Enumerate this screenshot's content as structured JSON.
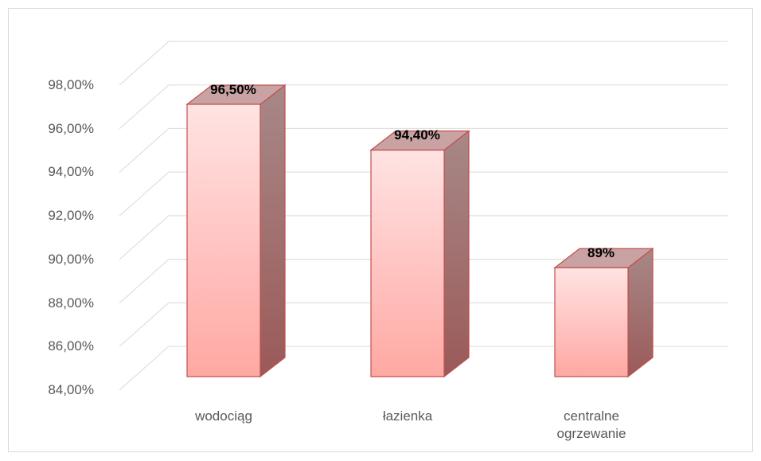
{
  "chart_data": {
    "type": "bar3d",
    "categories": [
      "wodociąg",
      "łazienka",
      "centralne ogrzewanie"
    ],
    "values": [
      96.5,
      94.4,
      89
    ],
    "value_labels": [
      "96,50%",
      "94,40%",
      "89%"
    ],
    "color": "#c0504d",
    "ylim": [
      84,
      98
    ],
    "yticks": [
      {
        "value": 84,
        "label": "84,00%"
      },
      {
        "value": 86,
        "label": "86,00%"
      },
      {
        "value": 88,
        "label": "88,00%"
      },
      {
        "value": 90,
        "label": "90,00%"
      },
      {
        "value": 92,
        "label": "92,00%"
      },
      {
        "value": 94,
        "label": "94,00%"
      },
      {
        "value": 96,
        "label": "96,00%"
      },
      {
        "value": 98,
        "label": "98,00%"
      }
    ],
    "grid": true
  }
}
